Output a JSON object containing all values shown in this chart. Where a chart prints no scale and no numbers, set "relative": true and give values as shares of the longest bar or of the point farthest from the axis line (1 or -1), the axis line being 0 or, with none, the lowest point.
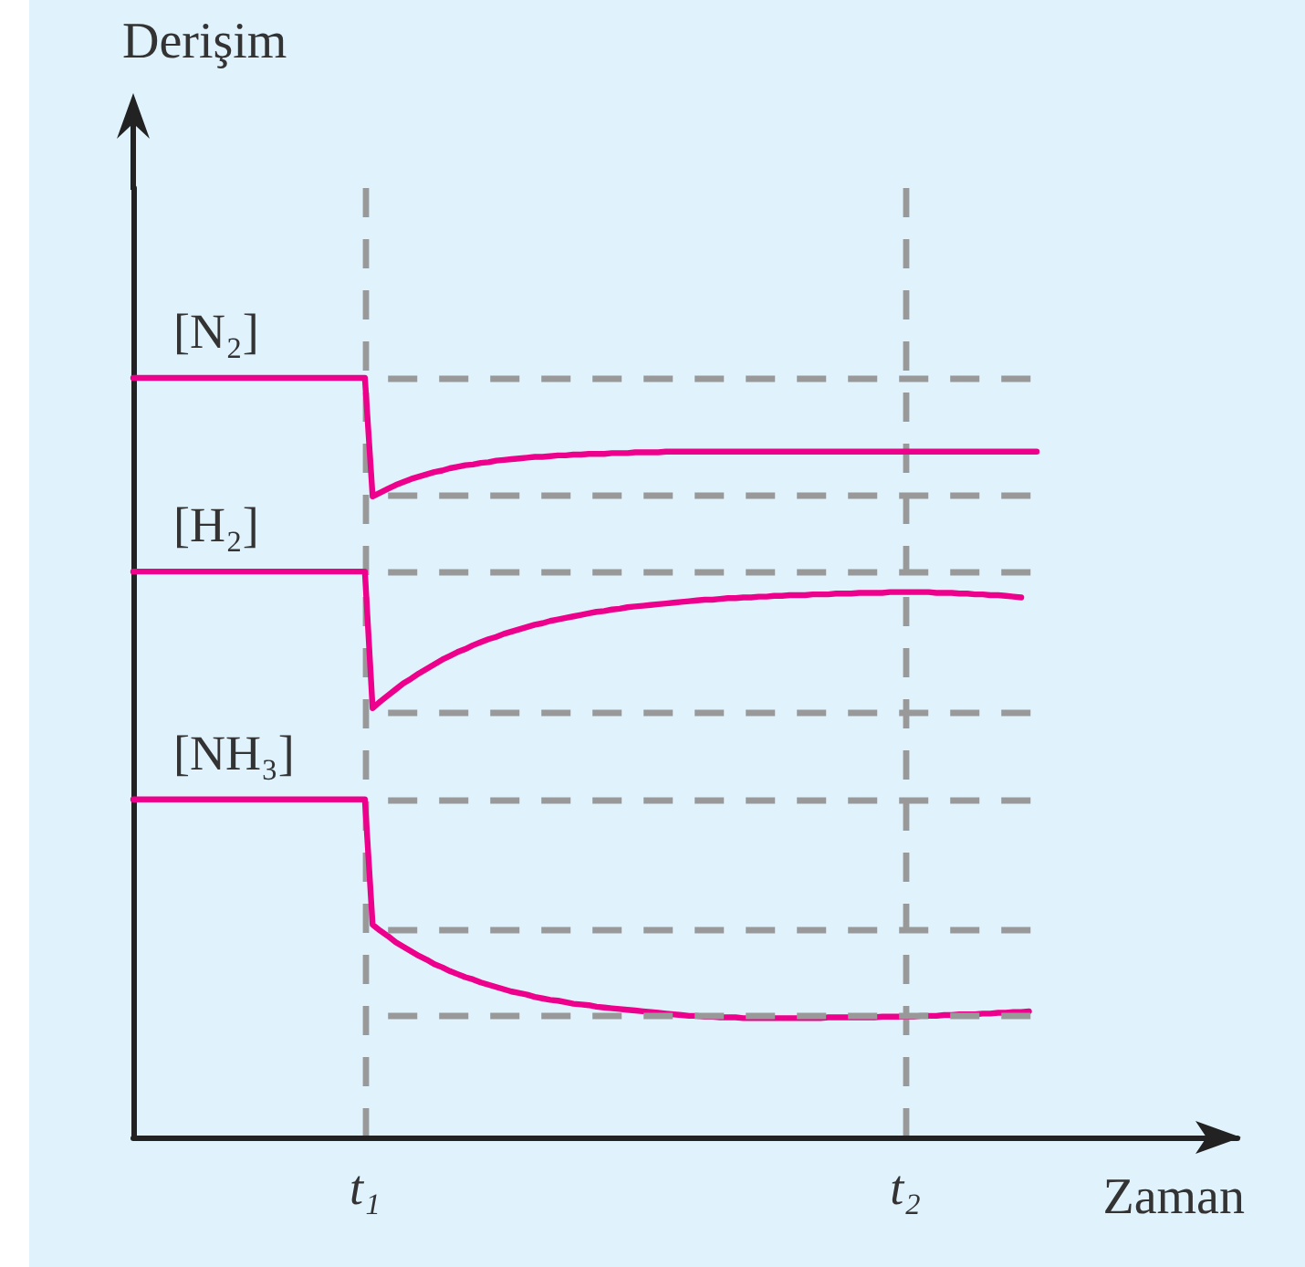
{
  "chart_data": {
    "type": "line",
    "relative": true,
    "xlabel": "Zaman",
    "annotations": [
      "Derişim"
    ],
    "marker": "none",
    "line_style": "solid",
    "grid": "x",
    "categories": [
      null,
      null,
      null,
      null,
      null,
      null,
      null,
      null,
      null,
      null,
      null,
      null,
      null,
      null,
      null,
      null,
      null,
      null,
      null,
      null,
      null,
      null,
      null,
      null,
      null,
      null,
      null,
      null,
      null,
      null,
      "t₁",
      null,
      null,
      null,
      null,
      null,
      null,
      null,
      null,
      null,
      null,
      null,
      null,
      null,
      null,
      null,
      null,
      null,
      null,
      null,
      null,
      null,
      null,
      null,
      null,
      null,
      null,
      null,
      null,
      null,
      null,
      null,
      null,
      null,
      null,
      null,
      null,
      null,
      null,
      null,
      null,
      null,
      null,
      null,
      null,
      null,
      null,
      null,
      null,
      null,
      null,
      null,
      null,
      null,
      null,
      null,
      null,
      null,
      null,
      null,
      null,
      null,
      null,
      null,
      null,
      null,
      null,
      null,
      null,
      null,
      "t₂",
      null,
      null,
      null,
      null,
      null,
      null,
      null,
      null,
      null,
      null,
      null,
      null,
      null,
      null,
      null,
      null,
      null,
      null,
      null,
      null,
      null,
      null,
      null,
      null,
      null,
      null,
      null,
      null,
      null,
      null,
      null,
      null,
      null,
      null,
      null,
      null,
      null,
      null,
      null,
      null,
      null,
      null,
      null
    ],
    "series": [
      {
        "name": "[N₂]",
        "color": "#ec008c",
        "values": [
          1,
          1,
          1,
          1,
          1,
          1,
          1,
          1,
          1,
          1,
          1,
          1,
          1,
          1,
          1,
          1,
          1,
          1,
          1,
          1,
          1,
          1,
          1,
          1,
          1,
          1,
          1,
          1,
          1,
          1,
          1,
          0.844,
          0.849,
          0.854,
          0.859,
          0.863,
          0.867,
          0.87,
          0.873,
          0.876,
          0.878,
          0.881,
          0.883,
          0.885,
          0.886,
          0.888,
          0.889,
          0.891,
          0.892,
          0.893,
          0.894,
          0.895,
          0.896,
          0.896,
          0.897,
          0.898,
          0.898,
          0.899,
          0.899,
          0.9,
          0.9,
          0.9,
          0.901,
          0.901,
          0.901,
          0.902,
          0.902,
          0.902,
          0.902,
          0.903,
          0.903,
          0.903,
          0.903,
          0.903,
          0.903,
          0.903,
          0.903,
          0.903,
          0.903,
          0.903,
          0.903,
          0.903,
          0.903,
          0.903,
          0.903,
          0.903,
          0.903,
          0.903,
          0.903,
          0.903,
          0.903,
          0.903,
          0.903,
          0.903,
          0.903,
          0.903,
          0.903,
          0.903,
          0.903,
          0.903,
          0.903,
          0.903,
          0.903,
          0.903,
          0.903,
          0.903,
          0.903,
          0.903,
          0.903,
          0.903,
          0.903,
          0.903,
          0.903,
          0.903,
          0.903,
          0.903,
          0.903,
          0.903,
          null,
          null,
          null,
          null,
          null,
          null,
          null,
          null,
          null,
          null,
          null,
          null,
          null,
          null,
          null,
          null,
          null,
          null,
          null,
          null,
          null,
          null,
          null,
          null,
          null,
          null
        ]
      },
      {
        "name": "[H₂]",
        "color": "#ec008c",
        "values": [
          0.745,
          0.745,
          0.745,
          0.745,
          0.745,
          0.745,
          0.745,
          0.745,
          0.745,
          0.745,
          0.745,
          0.745,
          0.745,
          0.745,
          0.745,
          0.745,
          0.745,
          0.745,
          0.745,
          0.745,
          0.745,
          0.745,
          0.745,
          0.745,
          0.745,
          0.745,
          0.745,
          0.745,
          0.745,
          0.745,
          0.745,
          0.565,
          0.574,
          0.582,
          0.59,
          0.598,
          0.604,
          0.611,
          0.617,
          0.623,
          0.629,
          0.634,
          0.639,
          0.643,
          0.648,
          0.652,
          0.656,
          0.659,
          0.663,
          0.666,
          0.669,
          0.672,
          0.675,
          0.677,
          0.68,
          0.682,
          0.684,
          0.686,
          0.688,
          0.69,
          0.692,
          0.693,
          0.695,
          0.696,
          0.698,
          0.699,
          0.7,
          0.701,
          0.702,
          0.703,
          0.704,
          0.705,
          0.706,
          0.707,
          0.708,
          0.708,
          0.709,
          0.71,
          0.71,
          0.711,
          0.711,
          0.712,
          0.712,
          0.713,
          0.713,
          0.714,
          0.714,
          0.714,
          0.715,
          0.715,
          0.715,
          0.716,
          0.716,
          0.716,
          0.717,
          0.717,
          0.717,
          0.717,
          0.718,
          0.718,
          0.718,
          0.718,
          0.718,
          0.718,
          0.717,
          0.717,
          0.717,
          0.716,
          0.716,
          0.715,
          0.715,
          0.714,
          0.714,
          0.713,
          0.712,
          0.711,
          null,
          null,
          null,
          null,
          null,
          null,
          null,
          null,
          null,
          null,
          null,
          null,
          null,
          null,
          null,
          null,
          null,
          null,
          null,
          null,
          null,
          null,
          null,
          null,
          null,
          null,
          null,
          null
        ]
      },
      {
        "name": "[NH₃]",
        "color": "#ec008c",
        "values": [
          0.445,
          0.445,
          0.445,
          0.445,
          0.445,
          0.445,
          0.445,
          0.445,
          0.445,
          0.445,
          0.445,
          0.445,
          0.445,
          0.445,
          0.445,
          0.445,
          0.445,
          0.445,
          0.445,
          0.445,
          0.445,
          0.445,
          0.445,
          0.445,
          0.445,
          0.445,
          0.445,
          0.445,
          0.445,
          0.445,
          0.445,
          0.28,
          0.272,
          0.265,
          0.257,
          0.251,
          0.245,
          0.239,
          0.234,
          0.228,
          0.224,
          0.219,
          0.215,
          0.211,
          0.208,
          0.204,
          0.201,
          0.198,
          0.195,
          0.192,
          0.19,
          0.188,
          0.185,
          0.183,
          0.181,
          0.18,
          0.178,
          0.176,
          0.175,
          0.174,
          0.172,
          0.171,
          0.17,
          0.169,
          0.168,
          0.167,
          0.166,
          0.165,
          0.164,
          0.163,
          0.162,
          0.161,
          0.16,
          0.16,
          0.159,
          0.159,
          0.158,
          0.158,
          0.158,
          0.157,
          0.157,
          0.157,
          0.157,
          0.157,
          0.157,
          0.157,
          0.157,
          0.157,
          0.157,
          0.157,
          0.158,
          0.158,
          0.158,
          0.158,
          0.158,
          0.158,
          0.158,
          0.159,
          0.159,
          0.159,
          0.159,
          0.159,
          0.16,
          0.16,
          0.16,
          0.161,
          0.161,
          0.162,
          0.162,
          0.162,
          0.163,
          0.163,
          0.164,
          0.164,
          0.165,
          0.165,
          0.166,
          null,
          null,
          null,
          null,
          null,
          null,
          null,
          null,
          null,
          null,
          null,
          null,
          null,
          null,
          null,
          null,
          null,
          null,
          null,
          null,
          null,
          null,
          null,
          null,
          null,
          null,
          null
        ]
      }
    ],
    "ref_lines": [
      {
        "axis": "y",
        "value": 1,
        "color": "#999999",
        "line_style": "dashed"
      },
      {
        "axis": "y",
        "value": 0.845,
        "color": "#999999",
        "line_style": "dashed"
      },
      {
        "axis": "y",
        "value": 0.745,
        "color": "#999999",
        "line_style": "dashed"
      },
      {
        "axis": "y",
        "value": 0.56,
        "color": "#999999",
        "line_style": "dashed"
      },
      {
        "axis": "y",
        "value": 0.445,
        "color": "#999999",
        "line_style": "dashed"
      },
      {
        "axis": "y",
        "value": 0.274,
        "color": "#999999",
        "line_style": "dashed"
      },
      {
        "axis": "y",
        "value": 0.161,
        "color": "#999999",
        "line_style": "dashed"
      }
    ]
  }
}
